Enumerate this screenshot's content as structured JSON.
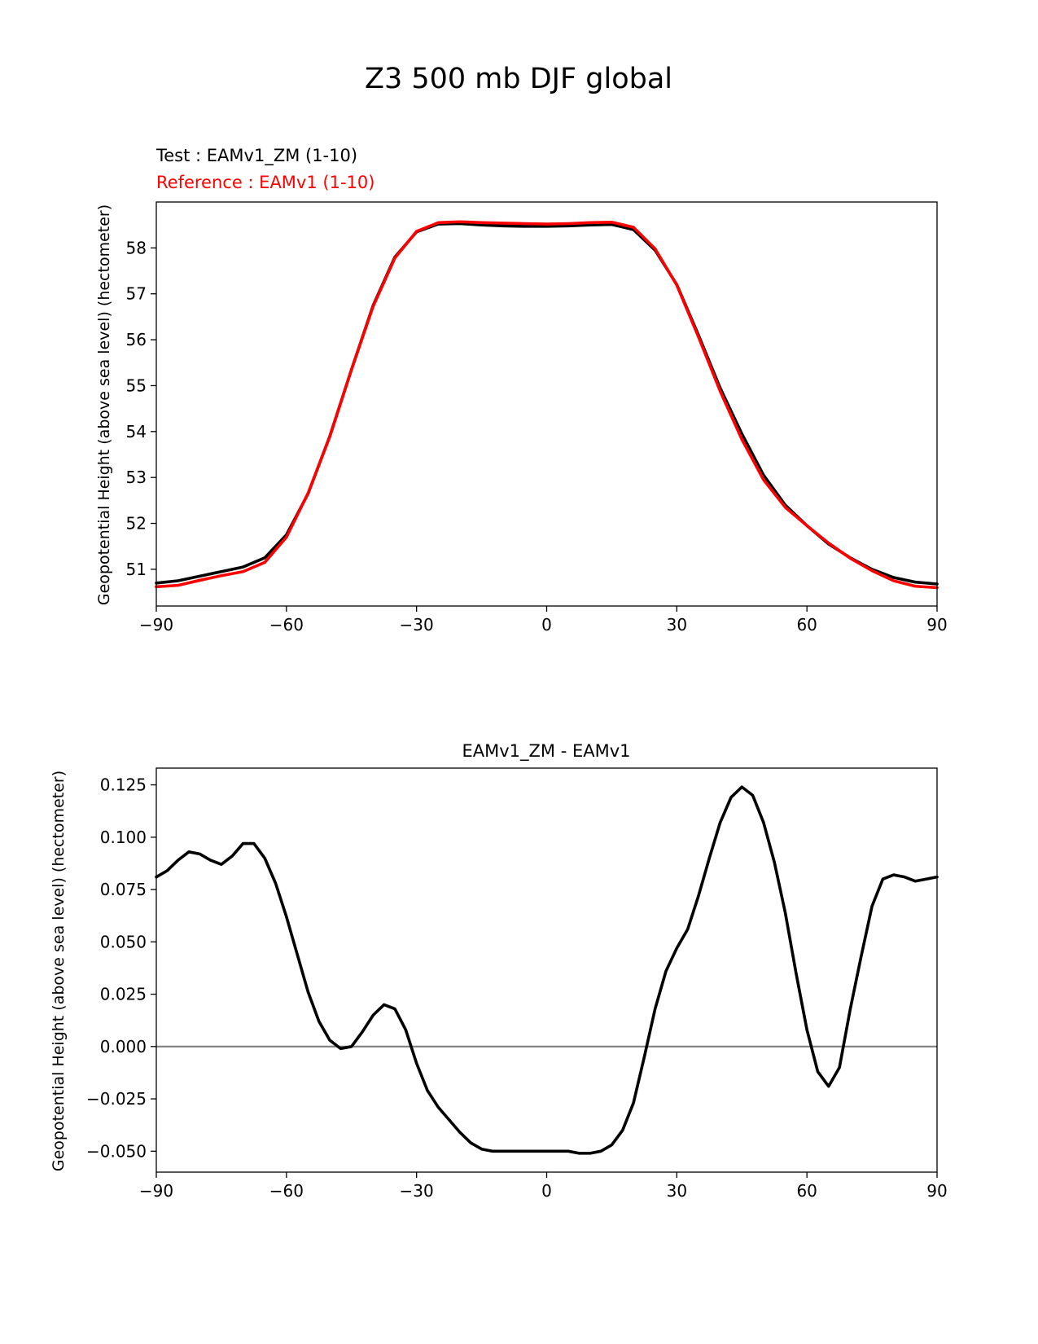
{
  "suptitle": "Z3 500 mb DJF global",
  "colors": {
    "test": "#000000",
    "reference": "#ff0000",
    "zero_line": "#808080"
  },
  "chart_data": [
    {
      "type": "line",
      "test_label": "Test : EAMv1_ZM (1-10)",
      "reference_label": "Reference : EAMv1 (1-10)",
      "xlabel": "",
      "ylabel": "Geopotential Height (above sea level) (hectometer)",
      "xlim": [
        -90,
        90
      ],
      "ylim": [
        50.2,
        59.0
      ],
      "xticks": [
        -90,
        -60,
        -30,
        0,
        30,
        60,
        90
      ],
      "xtick_labels": [
        "−90",
        "−60",
        "−30",
        "0",
        "30",
        "60",
        "90"
      ],
      "yticks": [
        51,
        52,
        53,
        54,
        55,
        56,
        57,
        58
      ],
      "ytick_labels": [
        "51",
        "52",
        "53",
        "54",
        "55",
        "56",
        "57",
        "58"
      ],
      "x": [
        -90,
        -85,
        -80,
        -75,
        -70,
        -65,
        -60,
        -55,
        -50,
        -45,
        -40,
        -35,
        -30,
        -25,
        -20,
        -15,
        -10,
        -5,
        0,
        5,
        10,
        15,
        20,
        25,
        30,
        35,
        40,
        45,
        50,
        55,
        60,
        65,
        70,
        75,
        80,
        85,
        90
      ],
      "series": [
        {
          "name": "Test : EAMv1_ZM (1-10)",
          "color": "#000000",
          "values": [
            50.7,
            50.75,
            50.85,
            50.95,
            51.05,
            51.25,
            51.75,
            52.65,
            53.9,
            55.35,
            56.75,
            57.8,
            58.35,
            58.52,
            58.53,
            58.5,
            58.48,
            58.47,
            58.47,
            58.48,
            58.5,
            58.51,
            58.4,
            57.95,
            57.2,
            56.1,
            54.95,
            53.95,
            53.05,
            52.4,
            51.95,
            51.55,
            51.25,
            51.0,
            50.82,
            50.72,
            50.68
          ]
        },
        {
          "name": "Reference : EAMv1 (1-10)",
          "color": "#ff0000",
          "values": [
            50.62,
            50.65,
            50.76,
            50.86,
            50.95,
            51.15,
            51.7,
            52.66,
            53.89,
            55.35,
            56.73,
            57.78,
            58.36,
            58.55,
            58.57,
            58.55,
            58.54,
            58.53,
            58.52,
            58.53,
            58.55,
            58.56,
            58.45,
            57.98,
            57.19,
            56.06,
            54.88,
            53.83,
            52.95,
            52.35,
            51.95,
            51.57,
            51.24,
            50.97,
            50.75,
            50.63,
            50.6
          ]
        }
      ]
    },
    {
      "type": "line",
      "title": "EAMv1_ZM - EAMv1",
      "xlabel": "",
      "ylabel": "Geopotential Height (above sea level) (hectometer)",
      "xlim": [
        -90,
        90
      ],
      "ylim": [
        -0.06,
        0.133
      ],
      "xticks": [
        -90,
        -60,
        -30,
        0,
        30,
        60,
        90
      ],
      "xtick_labels": [
        "−90",
        "−60",
        "−30",
        "0",
        "30",
        "60",
        "90"
      ],
      "yticks": [
        -0.05,
        -0.025,
        0.0,
        0.025,
        0.05,
        0.075,
        0.1,
        0.125
      ],
      "ytick_labels": [
        "−0.050",
        "−0.025",
        "0.000",
        "0.025",
        "0.050",
        "0.075",
        "0.100",
        "0.125"
      ],
      "zero_line": 0.0,
      "x": [
        -90,
        -87.5,
        -85,
        -82.5,
        -80,
        -77.5,
        -75,
        -72.5,
        -70,
        -67.5,
        -65,
        -62.5,
        -60,
        -57.5,
        -55,
        -52.5,
        -50,
        -47.5,
        -45,
        -42.5,
        -40,
        -37.5,
        -35,
        -32.5,
        -30,
        -27.5,
        -25,
        -22.5,
        -20,
        -17.5,
        -15,
        -12.5,
        -10,
        -7.5,
        -5,
        -2.5,
        0,
        2.5,
        5,
        7.5,
        10,
        12.5,
        15,
        17.5,
        20,
        22.5,
        25,
        27.5,
        30,
        32.5,
        35,
        37.5,
        40,
        42.5,
        45,
        47.5,
        50,
        52.5,
        55,
        57.5,
        60,
        62.5,
        65,
        67.5,
        70,
        72.5,
        75,
        77.5,
        80,
        82.5,
        85,
        87.5,
        90
      ],
      "series": [
        {
          "name": "EAMv1_ZM - EAMv1",
          "color": "#000000",
          "values": [
            0.081,
            0.084,
            0.089,
            0.093,
            0.092,
            0.089,
            0.087,
            0.091,
            0.097,
            0.097,
            0.09,
            0.078,
            0.062,
            0.044,
            0.026,
            0.012,
            0.003,
            -0.001,
            0.0,
            0.007,
            0.015,
            0.02,
            0.018,
            0.008,
            -0.008,
            -0.021,
            -0.029,
            -0.035,
            -0.041,
            -0.046,
            -0.049,
            -0.05,
            -0.05,
            -0.05,
            -0.05,
            -0.05,
            -0.05,
            -0.05,
            -0.05,
            -0.051,
            -0.051,
            -0.05,
            -0.047,
            -0.04,
            -0.027,
            -0.005,
            0.018,
            0.036,
            0.047,
            0.056,
            0.072,
            0.09,
            0.107,
            0.119,
            0.124,
            0.12,
            0.107,
            0.088,
            0.064,
            0.035,
            0.008,
            -0.012,
            -0.019,
            -0.01,
            0.018,
            0.043,
            0.067,
            0.08,
            0.082,
            0.081,
            0.079,
            0.08,
            0.081
          ]
        }
      ]
    }
  ]
}
